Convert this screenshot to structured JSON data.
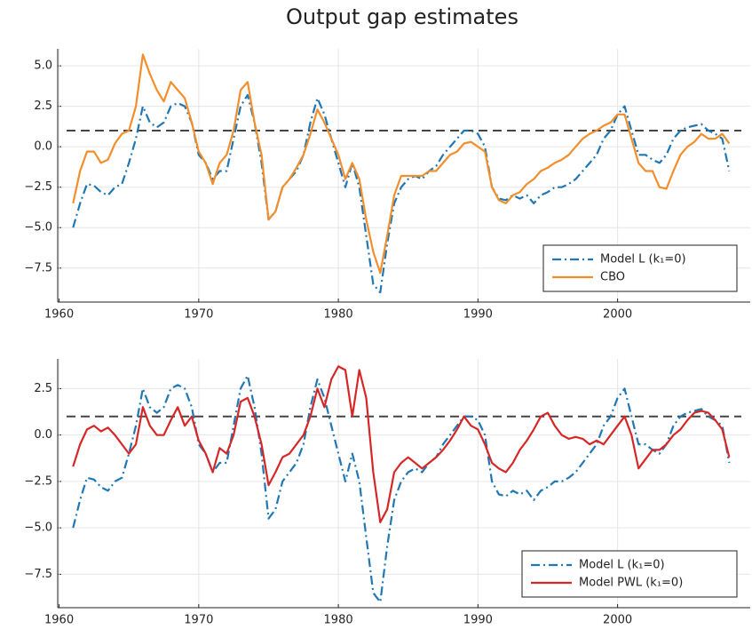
{
  "chart_data": [
    {
      "type": "line",
      "title": "Output gap estimates",
      "x": [
        1961,
        1961.5,
        1962,
        1962.5,
        1963,
        1963.5,
        1964,
        1964.5,
        1965,
        1965.5,
        1966,
        1966.5,
        1967,
        1967.5,
        1968,
        1968.5,
        1969,
        1969.5,
        1970,
        1970.5,
        1971,
        1971.5,
        1972,
        1972.5,
        1973,
        1973.5,
        1974,
        1974.5,
        1975,
        1975.5,
        1976,
        1976.5,
        1977,
        1977.5,
        1978,
        1978.5,
        1979,
        1979.5,
        1980,
        1980.5,
        1981,
        1981.5,
        1982,
        1982.5,
        1983,
        1983.5,
        1984,
        1984.5,
        1985,
        1985.5,
        1986,
        1986.5,
        1987,
        1987.5,
        1988,
        1988.5,
        1989,
        1989.5,
        1990,
        1990.5,
        1991,
        1991.5,
        1992,
        1992.5,
        1993,
        1993.5,
        1994,
        1994.5,
        1995,
        1995.5,
        1996,
        1996.5,
        1997,
        1997.5,
        1998,
        1998.5,
        1999,
        1999.5,
        2000,
        2000.5,
        2001,
        2001.5,
        2002,
        2002.5,
        2003,
        2003.5,
        2004,
        2004.5,
        2005,
        2005.5,
        2006,
        2006.5,
        2007,
        2007.5,
        2008
      ],
      "series": [
        {
          "name": "Model L (k₁=0)",
          "color": "#1f77b4",
          "style": "dashdot",
          "values": [
            -5.0,
            -3.5,
            -2.3,
            -2.4,
            -2.8,
            -3.0,
            -2.5,
            -2.3,
            -1.0,
            0.5,
            2.5,
            1.5,
            1.2,
            1.5,
            2.5,
            2.7,
            2.5,
            1.5,
            -0.5,
            -1.0,
            -2.0,
            -1.5,
            -1.5,
            0.5,
            2.5,
            3.2,
            1.5,
            -1.0,
            -4.5,
            -4.0,
            -2.5,
            -2.0,
            -1.5,
            -0.5,
            1.5,
            3.0,
            2.0,
            0.5,
            -1.0,
            -2.5,
            -1.0,
            -2.5,
            -5.5,
            -8.5,
            -9.0,
            -6.0,
            -3.5,
            -2.5,
            -2.0,
            -1.8,
            -2.0,
            -1.5,
            -1.2,
            -0.5,
            0.0,
            0.5,
            1.0,
            1.0,
            0.8,
            0.0,
            -2.5,
            -3.2,
            -3.3,
            -3.0,
            -3.2,
            -3.0,
            -3.5,
            -3.0,
            -2.8,
            -2.5,
            -2.5,
            -2.3,
            -2.0,
            -1.5,
            -1.0,
            -0.5,
            0.5,
            1.0,
            2.0,
            2.5,
            1.0,
            -0.5,
            -0.5,
            -0.8,
            -1.0,
            -0.5,
            0.5,
            1.0,
            1.2,
            1.3,
            1.4,
            1.0,
            0.8,
            0.5,
            -1.5
          ]
        },
        {
          "name": "CBO",
          "color": "#f28e2b",
          "style": "solid",
          "values": [
            -3.5,
            -1.5,
            -0.3,
            -0.3,
            -1.0,
            -0.8,
            0.2,
            0.8,
            1.0,
            2.5,
            5.7,
            4.5,
            3.5,
            2.8,
            4.0,
            3.5,
            3.0,
            1.5,
            -0.3,
            -1.0,
            -2.3,
            -1.0,
            -0.5,
            1.0,
            3.5,
            4.0,
            1.5,
            -0.5,
            -4.5,
            -4.0,
            -2.5,
            -2.0,
            -1.3,
            -0.5,
            0.8,
            2.3,
            1.5,
            0.5,
            -0.5,
            -2.0,
            -1.0,
            -2.0,
            -4.5,
            -6.5,
            -7.8,
            -5.5,
            -3.0,
            -1.8,
            -1.8,
            -1.8,
            -1.8,
            -1.5,
            -1.5,
            -1.0,
            -0.5,
            -0.3,
            0.2,
            0.3,
            0.0,
            -0.3,
            -2.5,
            -3.3,
            -3.5,
            -3.0,
            -2.8,
            -2.3,
            -2.0,
            -1.5,
            -1.3,
            -1.0,
            -0.8,
            -0.5,
            0.0,
            0.5,
            0.8,
            1.0,
            1.3,
            1.5,
            2.0,
            2.0,
            0.5,
            -1.0,
            -1.5,
            -1.5,
            -2.5,
            -2.6,
            -1.5,
            -0.5,
            0.0,
            0.3,
            0.8,
            0.5,
            0.5,
            0.8,
            0.2
          ]
        }
      ],
      "xlim": [
        1959.9,
        2009.5
      ],
      "ylim": [
        -9.6,
        6.05
      ],
      "xticks": [
        1960,
        1970,
        1980,
        1990,
        2000
      ],
      "yticks": [
        {
          "value": 5,
          "label": "5.0"
        },
        {
          "value": 2.5,
          "label": "2.5"
        },
        {
          "value": 0,
          "label": "0.0"
        },
        {
          "value": -2.5,
          "label": "−2.5"
        },
        {
          "value": -5,
          "label": "−5.0"
        },
        {
          "value": -7.5,
          "label": "−7.5"
        }
      ],
      "hline": 1,
      "grid": true,
      "legend": "bottom-right"
    },
    {
      "type": "line",
      "x": [
        1961,
        1961.5,
        1962,
        1962.5,
        1963,
        1963.5,
        1964,
        1964.5,
        1965,
        1965.5,
        1966,
        1966.5,
        1967,
        1967.5,
        1968,
        1968.5,
        1969,
        1969.5,
        1970,
        1970.5,
        1971,
        1971.5,
        1972,
        1972.5,
        1973,
        1973.5,
        1974,
        1974.5,
        1975,
        1975.5,
        1976,
        1976.5,
        1977,
        1977.5,
        1978,
        1978.5,
        1979,
        1979.5,
        1980,
        1980.5,
        1981,
        1981.5,
        1982,
        1982.5,
        1983,
        1983.5,
        1984,
        1984.5,
        1985,
        1985.5,
        1986,
        1986.5,
        1987,
        1987.5,
        1988,
        1988.5,
        1989,
        1989.5,
        1990,
        1990.5,
        1991,
        1991.5,
        1992,
        1992.5,
        1993,
        1993.5,
        1994,
        1994.5,
        1995,
        1995.5,
        1996,
        1996.5,
        1997,
        1997.5,
        1998,
        1998.5,
        1999,
        1999.5,
        2000,
        2000.5,
        2001,
        2001.5,
        2002,
        2002.5,
        2003,
        2003.5,
        2004,
        2004.5,
        2005,
        2005.5,
        2006,
        2006.5,
        2007,
        2007.5,
        2008
      ],
      "series": [
        {
          "name": "Model L (k₁=0)",
          "color": "#1f77b4",
          "style": "dashdot",
          "values": [
            -5.0,
            -3.5,
            -2.3,
            -2.4,
            -2.8,
            -3.0,
            -2.5,
            -2.3,
            -1.0,
            0.5,
            2.5,
            1.5,
            1.2,
            1.5,
            2.5,
            2.7,
            2.5,
            1.5,
            -0.5,
            -1.0,
            -2.0,
            -1.5,
            -1.5,
            0.5,
            2.5,
            3.2,
            1.5,
            -1.0,
            -4.5,
            -4.0,
            -2.5,
            -2.0,
            -1.5,
            -0.5,
            1.5,
            3.0,
            2.0,
            0.5,
            -1.0,
            -2.5,
            -1.0,
            -2.5,
            -5.5,
            -8.5,
            -9.0,
            -6.0,
            -3.5,
            -2.5,
            -2.0,
            -1.8,
            -2.0,
            -1.5,
            -1.2,
            -0.5,
            0.0,
            0.5,
            1.0,
            1.0,
            0.8,
            0.0,
            -2.5,
            -3.2,
            -3.3,
            -3.0,
            -3.2,
            -3.0,
            -3.5,
            -3.0,
            -2.8,
            -2.5,
            -2.5,
            -2.3,
            -2.0,
            -1.5,
            -1.0,
            -0.5,
            0.5,
            1.0,
            2.0,
            2.5,
            1.0,
            -0.5,
            -0.5,
            -0.8,
            -1.0,
            -0.5,
            0.5,
            1.0,
            1.2,
            1.3,
            1.4,
            1.0,
            0.8,
            0.5,
            -1.5
          ]
        },
        {
          "name": "Model PWL (k₁=0)",
          "color": "#d62728",
          "style": "solid",
          "values": [
            -1.7,
            -0.5,
            0.3,
            0.5,
            0.2,
            0.4,
            0.0,
            -0.5,
            -1.0,
            -0.5,
            1.5,
            0.5,
            0.0,
            0.0,
            0.8,
            1.5,
            0.5,
            1.0,
            -0.3,
            -1.0,
            -2.0,
            -0.7,
            -1.0,
            0.0,
            1.8,
            2.0,
            1.0,
            -0.5,
            -2.7,
            -2.0,
            -1.2,
            -1.0,
            -0.5,
            0.0,
            1.0,
            2.5,
            1.5,
            3.0,
            3.7,
            3.5,
            1.0,
            3.5,
            2.0,
            -2.0,
            -4.7,
            -4.0,
            -2.0,
            -1.5,
            -1.2,
            -1.5,
            -1.8,
            -1.5,
            -1.2,
            -0.8,
            -0.3,
            0.3,
            1.0,
            0.5,
            0.3,
            -0.5,
            -1.5,
            -1.8,
            -2.0,
            -1.5,
            -0.8,
            -0.3,
            0.3,
            1.0,
            1.2,
            0.5,
            0.0,
            -0.2,
            -0.1,
            -0.2,
            -0.5,
            -0.3,
            -0.5,
            0.0,
            0.5,
            1.0,
            0.0,
            -1.8,
            -1.3,
            -0.8,
            -0.8,
            -0.5,
            0.0,
            0.3,
            0.8,
            1.2,
            1.3,
            1.2,
            0.8,
            0.3,
            -1.2
          ]
        }
      ],
      "xlim": [
        1959.9,
        2009.5
      ],
      "ylim": [
        -9.3,
        4.1
      ],
      "xticks": [
        1960,
        1970,
        1980,
        1990,
        2000
      ],
      "yticks": [
        {
          "value": 2.5,
          "label": "2.5"
        },
        {
          "value": 0,
          "label": "0.0"
        },
        {
          "value": -2.5,
          "label": "−2.5"
        },
        {
          "value": -5,
          "label": "−5.0"
        },
        {
          "value": -7.5,
          "label": "−7.5"
        }
      ],
      "hline": 1,
      "grid": true,
      "legend": "bottom-right"
    }
  ]
}
